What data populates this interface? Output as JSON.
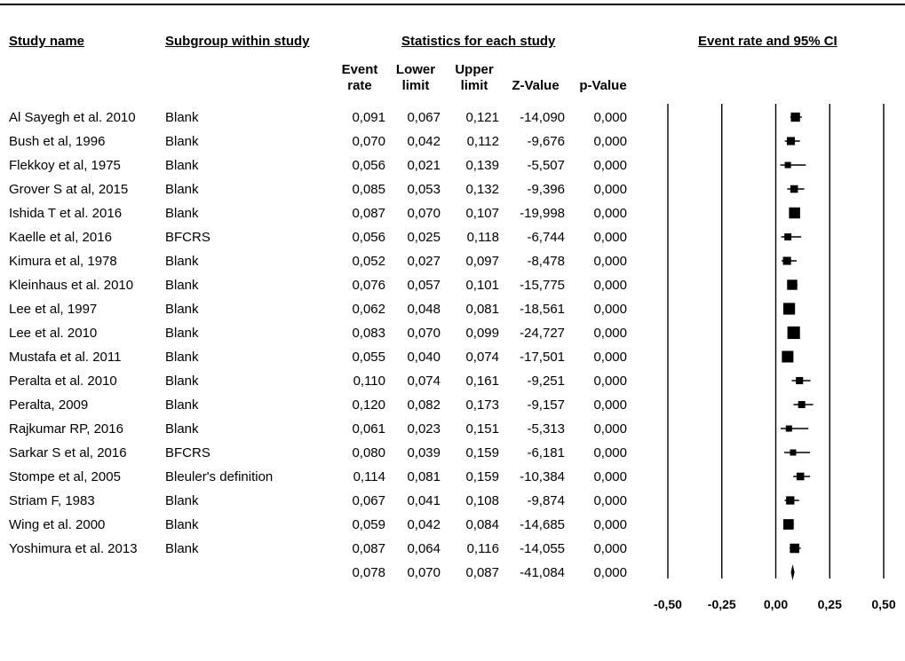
{
  "headers": {
    "study_name": "Study name",
    "subgroup": "Subgroup within study",
    "statistics": "Statistics for each study",
    "plot": "Event rate and 95% CI",
    "event_rate_1": "Event",
    "event_rate_2": "rate",
    "lower_1": "Lower",
    "lower_2": "limit",
    "upper_1": "Upper",
    "upper_2": "limit",
    "z": "Z-Value",
    "p": "p-Value"
  },
  "rows": [
    {
      "study": "Al Sayegh et al. 2010",
      "subgroup": "Blank",
      "rate": "0,091",
      "lower": "0,067",
      "upper": "0,121",
      "z": "-14,090",
      "p": "0,000"
    },
    {
      "study": "Bush et al, 1996",
      "subgroup": "Blank",
      "rate": "0,070",
      "lower": "0,042",
      "upper": "0,112",
      "z": "-9,676",
      "p": "0,000"
    },
    {
      "study": "Flekkoy et al, 1975",
      "subgroup": "Blank",
      "rate": "0,056",
      "lower": "0,021",
      "upper": "0,139",
      "z": "-5,507",
      "p": "0,000"
    },
    {
      "study": "Grover S at al, 2015",
      "subgroup": "Blank",
      "rate": "0,085",
      "lower": "0,053",
      "upper": "0,132",
      "z": "-9,396",
      "p": "0,000"
    },
    {
      "study": "Ishida T et al. 2016",
      "subgroup": "Blank",
      "rate": "0,087",
      "lower": "0,070",
      "upper": "0,107",
      "z": "-19,998",
      "p": "0,000"
    },
    {
      "study": "Kaelle et al, 2016",
      "subgroup": "BFCRS",
      "rate": "0,056",
      "lower": "0,025",
      "upper": "0,118",
      "z": "-6,744",
      "p": "0,000"
    },
    {
      "study": "Kimura et al, 1978",
      "subgroup": "Blank",
      "rate": "0,052",
      "lower": "0,027",
      "upper": "0,097",
      "z": "-8,478",
      "p": "0,000"
    },
    {
      "study": "Kleinhaus et al. 2010",
      "subgroup": "Blank",
      "rate": "0,076",
      "lower": "0,057",
      "upper": "0,101",
      "z": "-15,775",
      "p": "0,000"
    },
    {
      "study": "Lee et al, 1997",
      "subgroup": "Blank",
      "rate": "0,062",
      "lower": "0,048",
      "upper": "0,081",
      "z": "-18,561",
      "p": "0,000"
    },
    {
      "study": "Lee et al. 2010",
      "subgroup": "Blank",
      "rate": "0,083",
      "lower": "0,070",
      "upper": "0,099",
      "z": "-24,727",
      "p": "0,000"
    },
    {
      "study": "Mustafa et al. 2011",
      "subgroup": "Blank",
      "rate": "0,055",
      "lower": "0,040",
      "upper": "0,074",
      "z": "-17,501",
      "p": "0,000"
    },
    {
      "study": "Peralta et al. 2010",
      "subgroup": "Blank",
      "rate": "0,110",
      "lower": "0,074",
      "upper": "0,161",
      "z": "-9,251",
      "p": "0,000"
    },
    {
      "study": "Peralta, 2009",
      "subgroup": "Blank",
      "rate": "0,120",
      "lower": "0,082",
      "upper": "0,173",
      "z": "-9,157",
      "p": "0,000"
    },
    {
      "study": "Rajkumar RP, 2016",
      "subgroup": "Blank",
      "rate": "0,061",
      "lower": "0,023",
      "upper": "0,151",
      "z": "-5,313",
      "p": "0,000"
    },
    {
      "study": "Sarkar S et al, 2016",
      "subgroup": "BFCRS",
      "rate": "0,080",
      "lower": "0,039",
      "upper": "0,159",
      "z": "-6,181",
      "p": "0,000"
    },
    {
      "study": "Stompe et al, 2005",
      "subgroup": "Bleuler's definition",
      "rate": "0,114",
      "lower": "0,081",
      "upper": "0,159",
      "z": "-10,384",
      "p": "0,000"
    },
    {
      "study": "Striam F, 1983",
      "subgroup": "Blank",
      "rate": "0,067",
      "lower": "0,041",
      "upper": "0,108",
      "z": "-9,874",
      "p": "0,000"
    },
    {
      "study": "Wing et al. 2000",
      "subgroup": "Blank",
      "rate": "0,059",
      "lower": "0,042",
      "upper": "0,084",
      "z": "-14,685",
      "p": "0,000"
    },
    {
      "study": "Yoshimura et al. 2013",
      "subgroup": "Blank",
      "rate": "0,087",
      "lower": "0,064",
      "upper": "0,116",
      "z": "-14,055",
      "p": "0,000"
    }
  ],
  "summary": {
    "study": "",
    "subgroup": "",
    "rate": "0,078",
    "lower": "0,070",
    "upper": "0,087",
    "z": "-41,084",
    "p": "0,000"
  },
  "chart_data": {
    "type": "forest",
    "xlim": [
      -0.5,
      0.5
    ],
    "ticks": [
      -0.5,
      -0.25,
      0,
      0.25,
      0.5
    ],
    "tick_labels": [
      "-0,50",
      "-0,25",
      "0,00",
      "0,25",
      "0,50"
    ],
    "points": [
      {
        "rate": 0.091,
        "lower": 0.067,
        "upper": 0.121
      },
      {
        "rate": 0.07,
        "lower": 0.042,
        "upper": 0.112
      },
      {
        "rate": 0.056,
        "lower": 0.021,
        "upper": 0.139
      },
      {
        "rate": 0.085,
        "lower": 0.053,
        "upper": 0.132
      },
      {
        "rate": 0.087,
        "lower": 0.07,
        "upper": 0.107
      },
      {
        "rate": 0.056,
        "lower": 0.025,
        "upper": 0.118
      },
      {
        "rate": 0.052,
        "lower": 0.027,
        "upper": 0.097
      },
      {
        "rate": 0.076,
        "lower": 0.057,
        "upper": 0.101
      },
      {
        "rate": 0.062,
        "lower": 0.048,
        "upper": 0.081
      },
      {
        "rate": 0.083,
        "lower": 0.07,
        "upper": 0.099
      },
      {
        "rate": 0.055,
        "lower": 0.04,
        "upper": 0.074
      },
      {
        "rate": 0.11,
        "lower": 0.074,
        "upper": 0.161
      },
      {
        "rate": 0.12,
        "lower": 0.082,
        "upper": 0.173
      },
      {
        "rate": 0.061,
        "lower": 0.023,
        "upper": 0.151
      },
      {
        "rate": 0.08,
        "lower": 0.039,
        "upper": 0.159
      },
      {
        "rate": 0.114,
        "lower": 0.081,
        "upper": 0.159
      },
      {
        "rate": 0.067,
        "lower": 0.041,
        "upper": 0.108
      },
      {
        "rate": 0.059,
        "lower": 0.042,
        "upper": 0.084
      },
      {
        "rate": 0.087,
        "lower": 0.064,
        "upper": 0.116
      }
    ],
    "summary": {
      "rate": 0.078,
      "lower": 0.07,
      "upper": 0.087
    }
  }
}
